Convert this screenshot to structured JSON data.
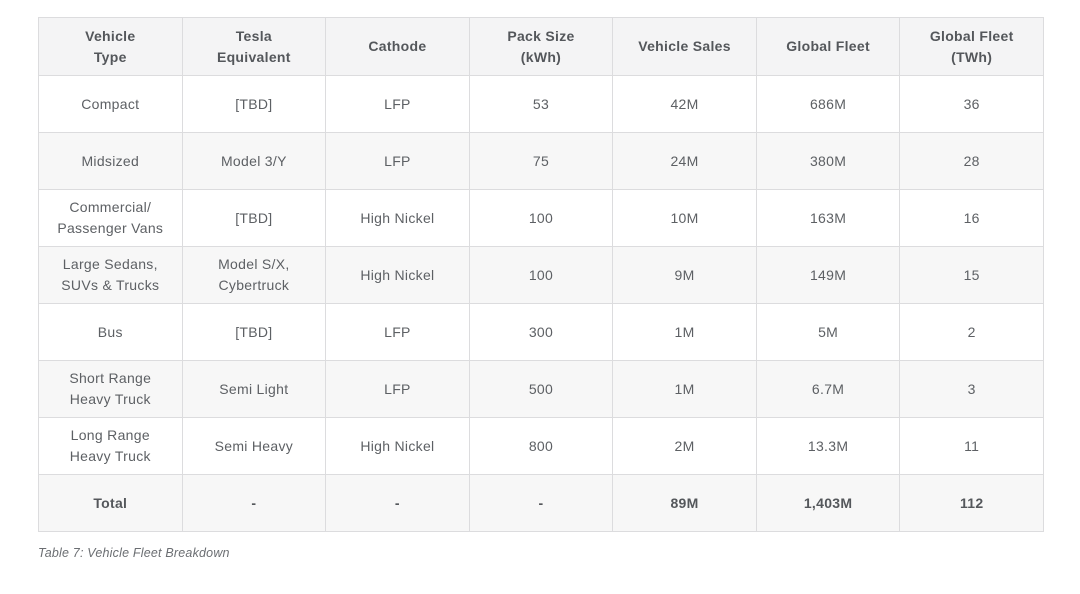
{
  "page": {
    "caption": "Table 7: Vehicle Fleet Breakdown"
  },
  "colors": {
    "header_bg": "#f4f4f5",
    "alt_row_bg": "#f7f7f7",
    "border": "#dcdcde",
    "body_text": "#5d6064",
    "strong_text": "#54575b",
    "caption_text": "#6b6e72",
    "page_bg": "#ffffff"
  },
  "table": {
    "columns": [
      "Vehicle\nType",
      "Tesla\nEquivalent",
      "Cathode",
      "Pack Size\n(kWh)",
      "Vehicle Sales",
      "Global Fleet",
      "Global Fleet\n(TWh)"
    ],
    "rows": [
      [
        "Compact",
        "[TBD]",
        "LFP",
        "53",
        "42M",
        "686M",
        "36"
      ],
      [
        "Midsized",
        "Model 3/Y",
        "LFP",
        "75",
        "24M",
        "380M",
        "28"
      ],
      [
        "Commercial/\nPassenger Vans",
        "[TBD]",
        "High Nickel",
        "100",
        "10M",
        "163M",
        "16"
      ],
      [
        "Large Sedans,\nSUVs & Trucks",
        "Model S/X,\nCybertruck",
        "High Nickel",
        "100",
        "9M",
        "149M",
        "15"
      ],
      [
        "Bus",
        "[TBD]",
        "LFP",
        "300",
        "1M",
        "5M",
        "2"
      ],
      [
        "Short Range\nHeavy Truck",
        "Semi Light",
        "LFP",
        "500",
        "1M",
        "6.7M",
        "3"
      ],
      [
        "Long Range\nHeavy Truck",
        "Semi Heavy",
        "High Nickel",
        "800",
        "2M",
        "13.3M",
        "11"
      ]
    ],
    "total_row": [
      "Total",
      "-",
      "-",
      "-",
      "89M",
      "1,403M",
      "112"
    ]
  }
}
